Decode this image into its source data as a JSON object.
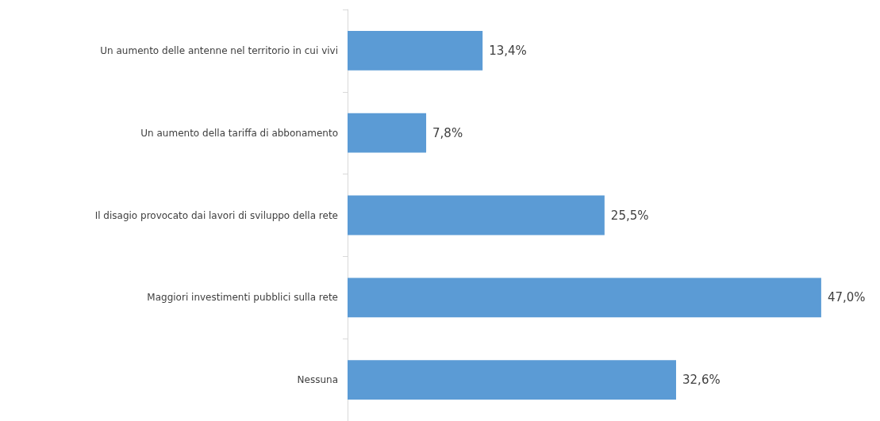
{
  "chart_data": {
    "type": "bar",
    "orientation": "horizontal",
    "categories": [
      "Un aumento delle antenne nel territorio in cui vivi",
      "Un aumento della tariffa di abbonamento",
      "Il disagio provocato dai lavori di sviluppo della rete",
      "Maggiori investimenti pubblici sulla rete",
      "Nessuna"
    ],
    "values": [
      13.4,
      7.8,
      25.5,
      47.0,
      32.6
    ],
    "value_labels": [
      "13,4%",
      "7,8%",
      "25,5%",
      "47,0%",
      "32,6%"
    ],
    "color": "#5b9bd5"
  }
}
